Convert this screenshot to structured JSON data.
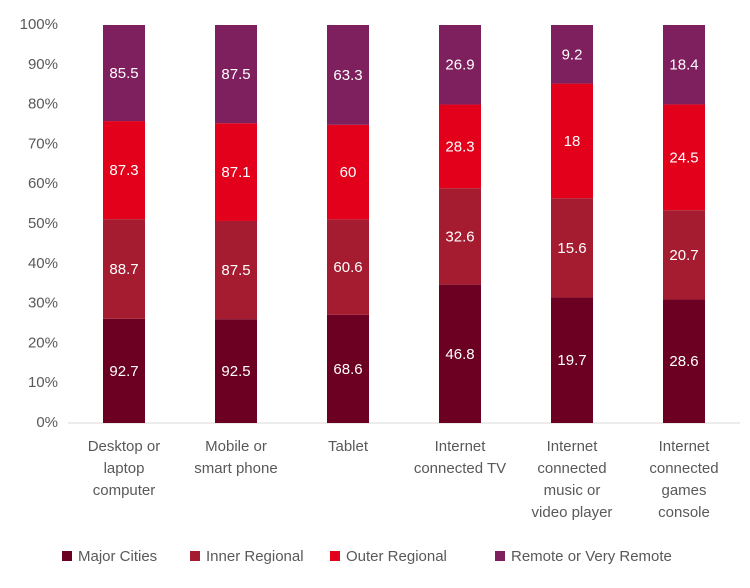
{
  "chart_data": {
    "type": "bar",
    "stacked": "percent",
    "categories": [
      "Desktop or laptop computer",
      "Mobile or smart phone",
      "Tablet",
      "Internet connected TV",
      "Internet connected music or video player",
      "Internet connected games console"
    ],
    "series": [
      {
        "name": "Major Cities",
        "color": "#6b0023",
        "values": [
          92.7,
          92.5,
          68.6,
          46.8,
          19.7,
          28.6
        ]
      },
      {
        "name": "Inner Regional",
        "color": "#a51c30",
        "values": [
          88.7,
          87.5,
          60.6,
          32.6,
          15.6,
          20.7
        ]
      },
      {
        "name": "Outer Regional",
        "color": "#e2001a",
        "values": [
          87.3,
          87.1,
          60.0,
          28.3,
          18.0,
          24.5
        ]
      },
      {
        "name": "Remote or Very Remote",
        "color": "#7e1f5e",
        "values": [
          85.5,
          87.5,
          63.3,
          26.9,
          9.2,
          18.4
        ]
      }
    ],
    "ylim": [
      0,
      100
    ],
    "yticks": [
      {
        "value": 0,
        "label": "0%"
      },
      {
        "value": 10,
        "label": "10%"
      },
      {
        "value": 20,
        "label": "20%"
      },
      {
        "value": 30,
        "label": "30%"
      },
      {
        "value": 40,
        "label": "40%"
      },
      {
        "value": 50,
        "label": "50%"
      },
      {
        "value": 60,
        "label": "60%"
      },
      {
        "value": 70,
        "label": "70%"
      },
      {
        "value": 80,
        "label": "80%"
      },
      {
        "value": 90,
        "label": "90%"
      },
      {
        "value": 100,
        "label": "100%"
      }
    ],
    "grid": false,
    "legend": "bottom"
  }
}
